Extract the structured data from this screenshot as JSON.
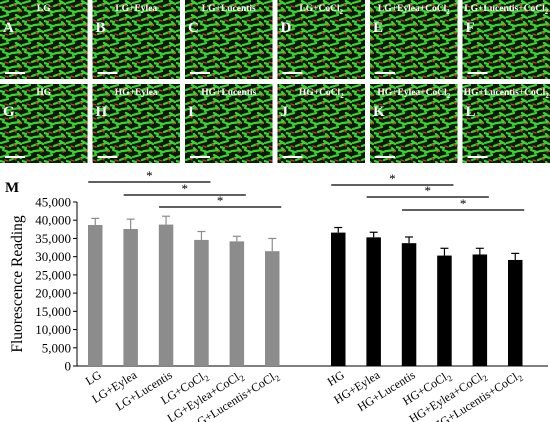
{
  "panels": [
    {
      "letter": "A",
      "name": "LG"
    },
    {
      "letter": "B",
      "name": "LG+Eylea"
    },
    {
      "letter": "C",
      "name": "LG+Lucentis"
    },
    {
      "letter": "D",
      "name": "LG+CoCl",
      "sub": "2"
    },
    {
      "letter": "E",
      "name": "LG+Eylea+CoCl",
      "sub": "2"
    },
    {
      "letter": "F",
      "name": "LG+Lucentis+CoCl",
      "sub": "2"
    },
    {
      "letter": "G",
      "name": "HG"
    },
    {
      "letter": "H",
      "name": "HG+Eylea"
    },
    {
      "letter": "I",
      "name": "HG+Lucentis"
    },
    {
      "letter": "J",
      "name": "HG+CoCl",
      "sub": "2"
    },
    {
      "letter": "K",
      "name": "HG+Eylea+CoCl",
      "sub": "2"
    },
    {
      "letter": "L",
      "name": "HG+Lucentis+CoCl",
      "sub": "2"
    }
  ],
  "colors": {
    "cells": "#2fc42a",
    "background": "#000000",
    "bar_lg": "#8c8c8c",
    "bar_hg": "#000000"
  },
  "chart_data": {
    "panel_label": "M",
    "type": "bar",
    "ylabel": "Fluorescence Reading",
    "ylim": [
      0,
      45000
    ],
    "yticks": [
      "0",
      "5,000",
      "10,000",
      "15,000",
      "20,000",
      "25,000",
      "30,000",
      "35,000",
      "40,000",
      "45,000"
    ],
    "groups": [
      {
        "color": "#8c8c8c",
        "categories": [
          {
            "label": "LG"
          },
          {
            "label": "LG+Eylea"
          },
          {
            "label": "LG+Lucentis"
          },
          {
            "label": "LG+CoCl",
            "sub": "2"
          },
          {
            "label": "LG+Eylea+CoCl",
            "sub": "2"
          },
          {
            "label": "LG+Lucentis+CoCl",
            "sub": "2"
          }
        ],
        "values": [
          38700,
          37600,
          38800,
          34600,
          34200,
          31500
        ],
        "errors": [
          1800,
          2700,
          2300,
          2300,
          1400,
          3500
        ]
      },
      {
        "color": "#000000",
        "categories": [
          {
            "label": "HG"
          },
          {
            "label": "HG+Eylea"
          },
          {
            "label": "HG+Lucentis"
          },
          {
            "label": "HG+CoCl",
            "sub": "2"
          },
          {
            "label": "HG+Eylea+CoCl",
            "sub": "2"
          },
          {
            "label": "HG+Lucentis+CoCl",
            "sub": "2"
          }
        ],
        "values": [
          36600,
          35300,
          33700,
          30300,
          30600,
          29100
        ],
        "errors": [
          1400,
          1400,
          1700,
          2000,
          1700,
          1800
        ]
      }
    ],
    "significance": [
      {
        "group": 0,
        "from": 0,
        "to": 3,
        "label": "*"
      },
      {
        "group": 0,
        "from": 1,
        "to": 4,
        "label": "*"
      },
      {
        "group": 0,
        "from": 2,
        "to": 5,
        "label": "*"
      },
      {
        "group": 1,
        "from": 0,
        "to": 3,
        "label": "*"
      },
      {
        "group": 1,
        "from": 1,
        "to": 4,
        "label": "*"
      },
      {
        "group": 1,
        "from": 2,
        "to": 5,
        "label": "*"
      }
    ]
  }
}
